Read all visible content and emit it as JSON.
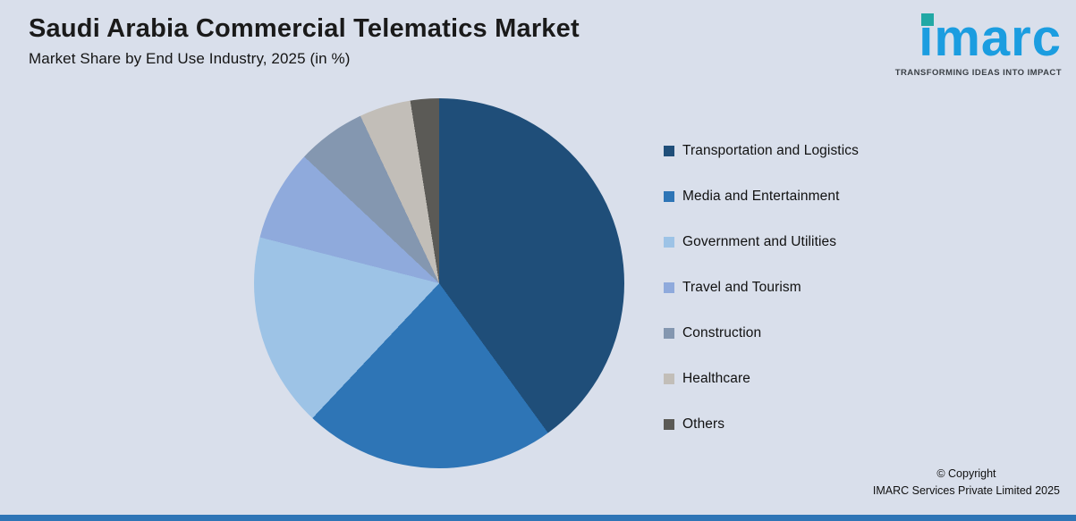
{
  "logo": {
    "text": "imarc",
    "tagline": "TRANSFORMING IDEAS INTO IMPACT"
  },
  "footer": {
    "line1": "© Copyright",
    "line2": "IMARC Services Private Limited 2025"
  },
  "colors": {
    "background": "#D9DFEB",
    "bottom_bar": "#2E75B6",
    "logo_blue": "#1B9DE0",
    "logo_dot_teal": "#21A8A5"
  },
  "chart_data": {
    "type": "pie",
    "title": "Saudi Arabia Commercial Telematics Market",
    "subtitle": "Market Share by End Use Industry, 2025 (in %)",
    "legend_position": "right",
    "start_angle_deg": 0,
    "direction": "clockwise",
    "slices": [
      {
        "label": "Transportation and Logistics",
        "value": 40,
        "color": "#1F4E79"
      },
      {
        "label": "Media and Entertainment",
        "value": 22,
        "color": "#2E75B6"
      },
      {
        "label": "Government and Utilities",
        "value": 17,
        "color": "#9DC3E6"
      },
      {
        "label": "Travel and Tourism",
        "value": 8,
        "color": "#8FAADC"
      },
      {
        "label": "Construction",
        "value": 6,
        "color": "#8497B0"
      },
      {
        "label": "Healthcare",
        "value": 4.5,
        "color": "#C2BEB8"
      },
      {
        "label": "Others",
        "value": 2.5,
        "color": "#5B5A56"
      }
    ]
  }
}
